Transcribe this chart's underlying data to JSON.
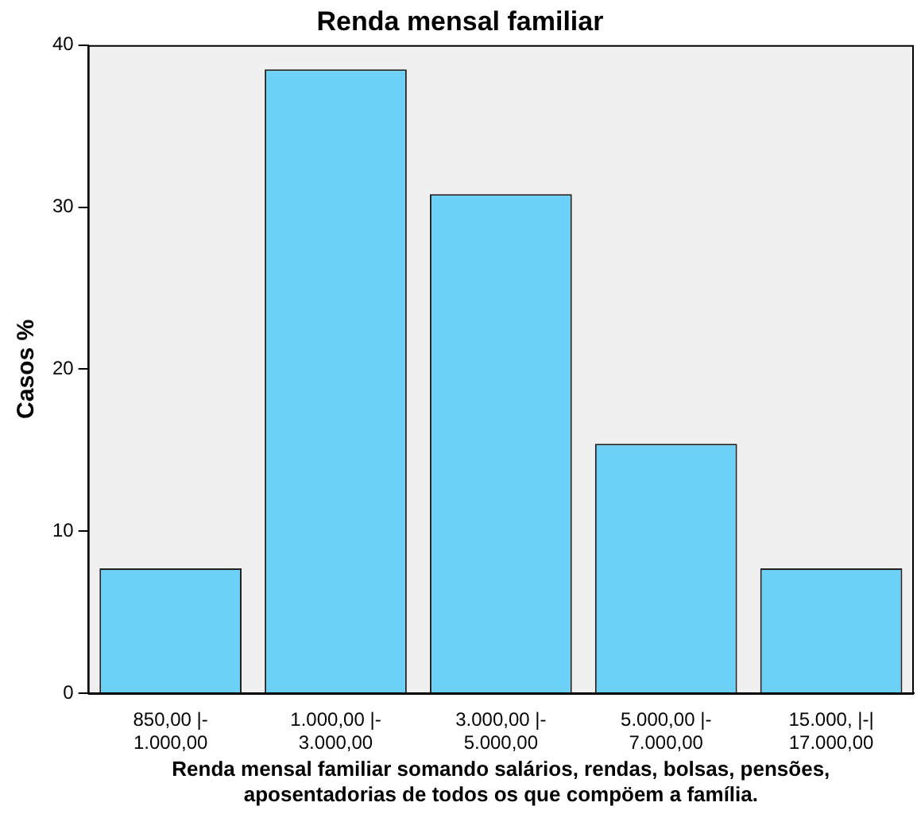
{
  "chart_data": {
    "type": "bar",
    "title": "Renda mensal familiar",
    "categories": [
      "850,00 |-\n1.000,00",
      "1.000,00 |-\n3.000,00",
      "3.000,00 |-\n5.000,00",
      "5.000,00 |-\n7.000,00",
      "15.000, |-|\n17.000,00"
    ],
    "values": [
      7.7,
      38.5,
      30.8,
      15.4,
      7.7
    ],
    "color": "#6dd0f7",
    "xlabel": "Renda mensal familiar somando salários, rendas, bolsas, pensões,\naposentadorias de todos os que compöem a família.",
    "ylabel": "Casos %",
    "ylim": [
      0,
      40
    ],
    "yticks": [
      0,
      10,
      20,
      30,
      40
    ],
    "grid": false,
    "legend": false
  }
}
